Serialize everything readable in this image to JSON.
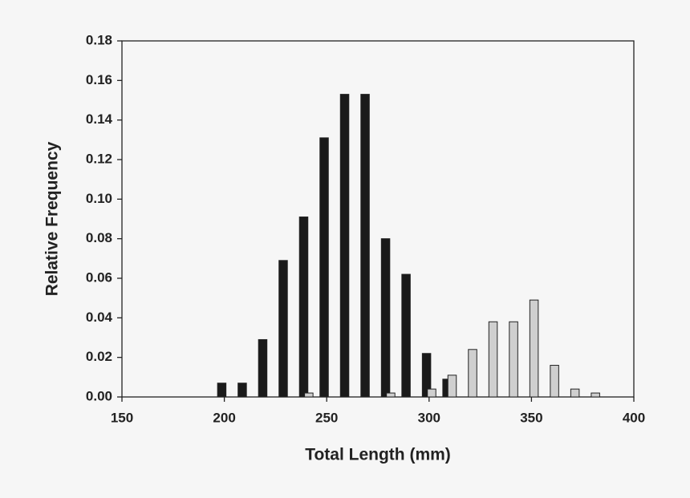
{
  "chart_data": {
    "type": "bar",
    "x": [
      200,
      210,
      220,
      230,
      240,
      250,
      260,
      270,
      280,
      290,
      300,
      310,
      320,
      330,
      340,
      350,
      360,
      370,
      380
    ],
    "series": [
      {
        "color": "#1a1a1a",
        "values": [
          0.007,
          0.007,
          0.029,
          0.069,
          0.091,
          0.131,
          0.153,
          0.153,
          0.08,
          0.062,
          0.022,
          0.009,
          0,
          0,
          0,
          0,
          0,
          0,
          0
        ]
      },
      {
        "color": "#cfcfcf",
        "values": [
          0,
          0,
          0,
          0,
          0.002,
          0,
          0,
          0,
          0.002,
          0,
          0.004,
          0.011,
          0.024,
          0.038,
          0.038,
          0.049,
          0.016,
          0.004,
          0.002
        ]
      }
    ],
    "xlabel": "Total Length (mm)",
    "ylabel": "Relative Frequency",
    "xlim": [
      150,
      400
    ],
    "xticks": [
      150,
      200,
      250,
      300,
      350,
      400
    ],
    "ylim": [
      0,
      0.18
    ],
    "yticks": [
      {
        "value": 0,
        "label": "0.00"
      },
      {
        "value": 0.02,
        "label": "0.02"
      },
      {
        "value": 0.04,
        "label": "0.04"
      },
      {
        "value": 0.06,
        "label": "0.06"
      },
      {
        "value": 0.08,
        "label": "0.08"
      },
      {
        "value": 0.1,
        "label": "0.10"
      },
      {
        "value": 0.12,
        "label": "0.12"
      },
      {
        "value": 0.14,
        "label": "0.14"
      },
      {
        "value": 0.16,
        "label": "0.16"
      },
      {
        "value": 0.18,
        "label": "0.18"
      }
    ]
  }
}
